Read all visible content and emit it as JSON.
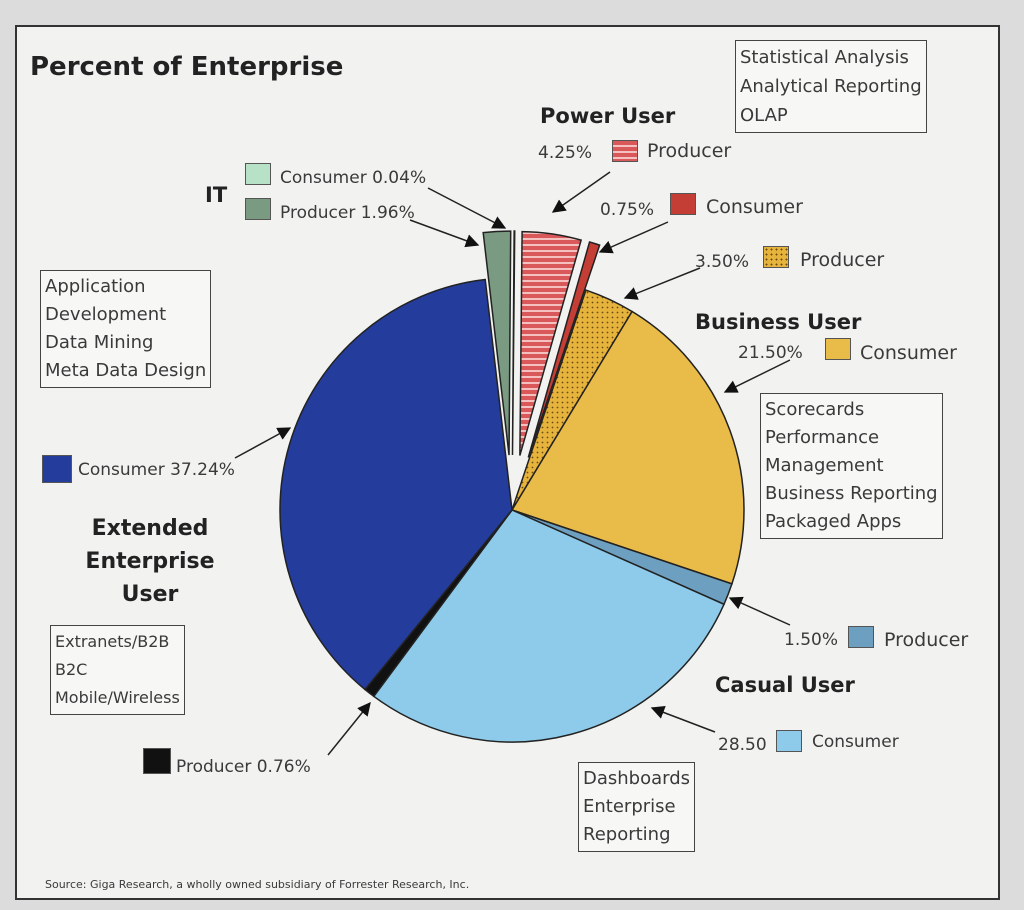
{
  "chart_data": {
    "type": "pie",
    "title": "Percent of Enterprise",
    "source": "Source: Giga Research, a wholly owned subsidiary of Forrester Research, Inc.",
    "groups": [
      {
        "name": "Power User",
        "box": [
          "Statistical Analysis",
          "Analytical Reporting",
          "OLAP"
        ]
      },
      {
        "name": "Business User",
        "box": [
          "Scorecards",
          "Performance",
          "Management",
          "Business Reporting",
          "Packaged Apps"
        ]
      },
      {
        "name": "Casual User",
        "box": [
          "Dashboards",
          "Enterprise",
          "Reporting"
        ]
      },
      {
        "name": "Extended Enterprise User",
        "box": [
          "Extranets/B2B",
          "B2C",
          "Mobile/Wireless"
        ]
      },
      {
        "name": "IT",
        "box": [
          "Application",
          "Development",
          "Data Mining",
          "Meta Data Design"
        ]
      }
    ],
    "slices": [
      {
        "group": "Power User",
        "label": "Producer",
        "value": 4.25,
        "value_label": "4.25%",
        "color": "#d9585a",
        "pattern": "stripes",
        "exploded": true
      },
      {
        "group": "Power User",
        "label": "Consumer",
        "value": 0.75,
        "value_label": "0.75%",
        "color": "#c43e36",
        "pattern": "solid",
        "exploded": true
      },
      {
        "group": "Business User",
        "label": "Producer",
        "value": 3.5,
        "value_label": "3.50%",
        "color": "#e6b43c",
        "pattern": "dots",
        "exploded": false
      },
      {
        "group": "Business User",
        "label": "Consumer",
        "value": 21.5,
        "value_label": "21.50%",
        "color": "#e9bb48",
        "pattern": "solid",
        "exploded": false
      },
      {
        "group": "Casual User",
        "label": "Producer",
        "value": 1.5,
        "value_label": "1.50%",
        "color": "#6c9fc0",
        "pattern": "solid",
        "exploded": false
      },
      {
        "group": "Casual User",
        "label": "Consumer",
        "value": 28.5,
        "value_label": "28.50",
        "color": "#8ecbea",
        "pattern": "solid",
        "exploded": false
      },
      {
        "group": "Extended Enterprise User",
        "label": "Producer",
        "value": 0.76,
        "value_label": "Producer 0.76%",
        "color": "#111111",
        "pattern": "solid",
        "exploded": false
      },
      {
        "group": "Extended Enterprise User",
        "label": "Consumer",
        "value": 37.24,
        "value_label": "Consumer 37.24%",
        "color": "#243c9c",
        "pattern": "solid",
        "exploded": false
      },
      {
        "group": "IT",
        "label": "Producer",
        "value": 1.96,
        "value_label": "Producer 1.96%",
        "color": "#7a9a82",
        "pattern": "solid",
        "exploded": true
      },
      {
        "group": "IT",
        "label": "Consumer",
        "value": 0.04,
        "value_label": "Consumer 0.04%",
        "color": "#b8e2c8",
        "pattern": "solid",
        "exploded": true
      }
    ]
  }
}
